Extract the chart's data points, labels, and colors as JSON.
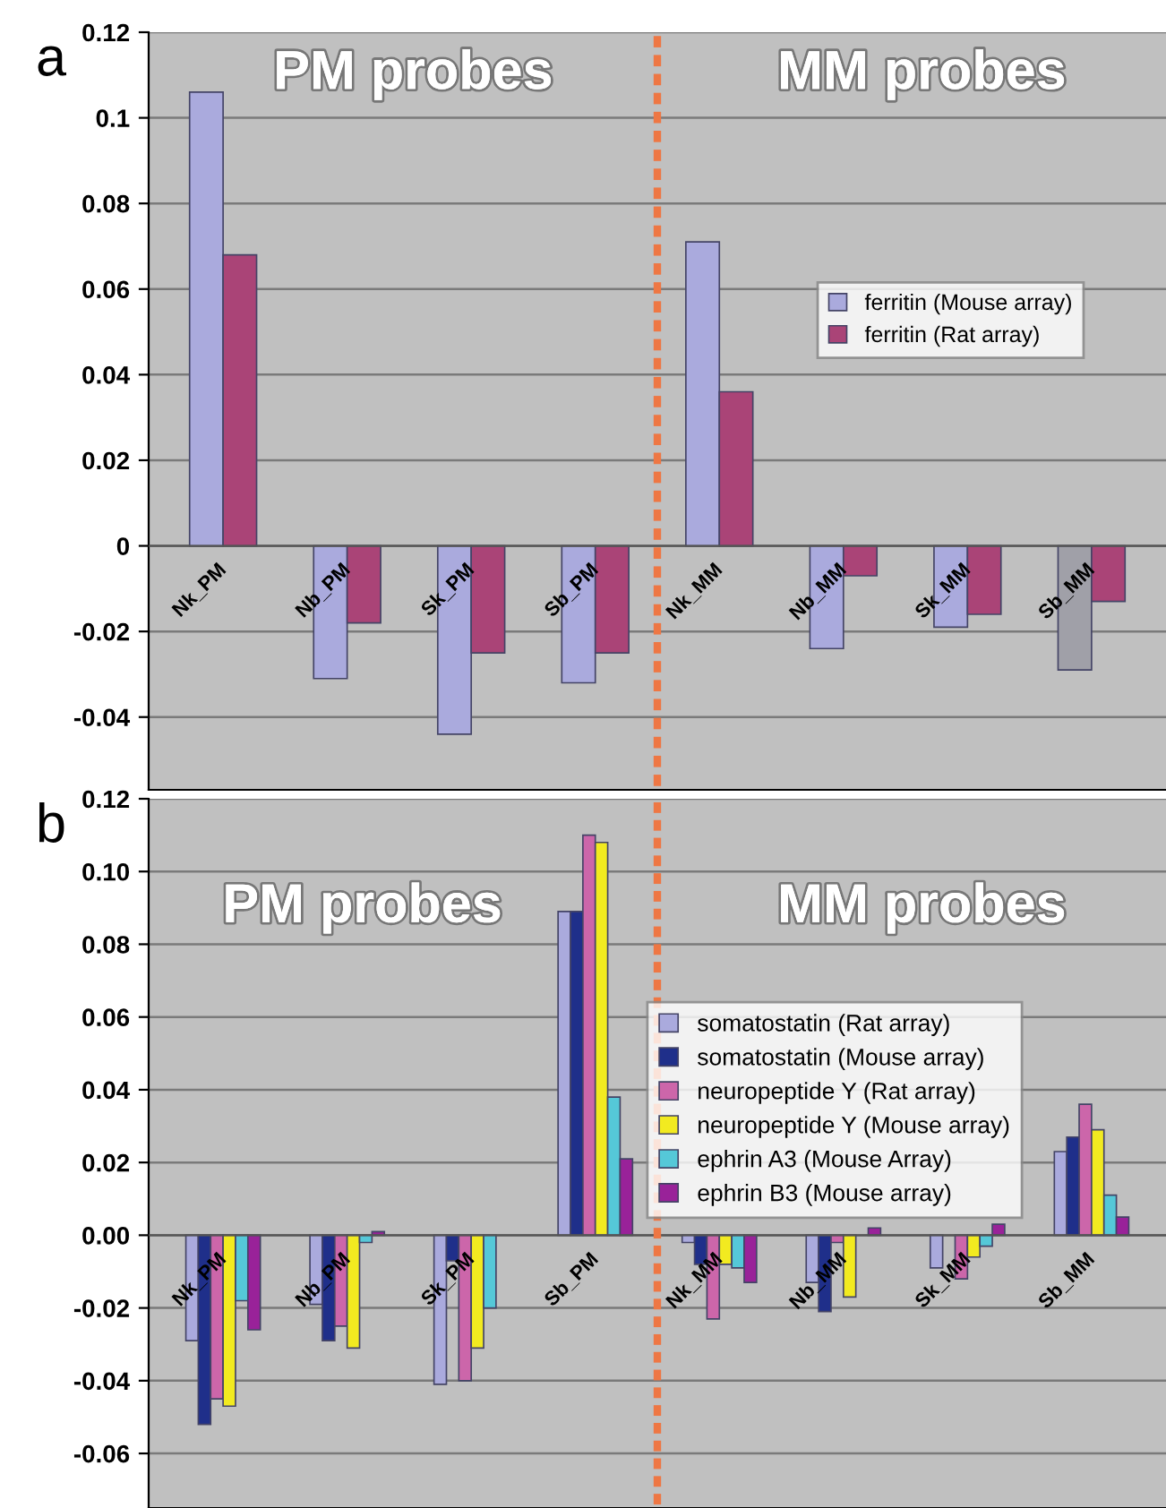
{
  "chart_data": [
    {
      "type": "bar",
      "annotations": [
        "a",
        "PM probes",
        "MM probes"
      ],
      "categories": [
        "Nk_PM",
        "Nb_PM",
        "Sk_PM",
        "Sb_PM",
        "Nk_MM",
        "Nb_MM",
        "Sk_MM",
        "Sb_MM"
      ],
      "series": [
        {
          "name": "ferritin (Mouse array)",
          "color": "#aaaadd",
          "colors": [
            "#aaaadd",
            "#aaaadd",
            "#aaaadd",
            "#aaaadd",
            "#aaaadd",
            "#aaaadd",
            "#aaaadd",
            "#a0a0a8"
          ],
          "values": [
            0.106,
            -0.031,
            -0.044,
            -0.032,
            0.071,
            -0.024,
            -0.019,
            -0.029
          ]
        },
        {
          "name": "ferritin (Rat array)",
          "color": "#aa4477",
          "values": [
            0.068,
            -0.018,
            -0.025,
            -0.025,
            0.036,
            -0.007,
            -0.016,
            -0.013
          ]
        }
      ],
      "ylim": [
        -0.057,
        0.12
      ],
      "yticks": [
        {
          "value": 0.12,
          "label": "0.12"
        },
        {
          "value": 0.1,
          "label": "0.1"
        },
        {
          "value": 0.08,
          "label": "0.08"
        },
        {
          "value": 0.06,
          "label": "0.06"
        },
        {
          "value": 0.04,
          "label": "0.04"
        },
        {
          "value": 0.02,
          "label": "0.02"
        },
        0,
        {
          "value": -0.02,
          "label": "-0.02"
        },
        {
          "value": -0.04,
          "label": "-0.04"
        }
      ],
      "grid": "y",
      "legend": "right"
    },
    {
      "type": "bar",
      "annotations": [
        "b",
        "PM probes",
        "MM probes"
      ],
      "categories": [
        "Nk_PM",
        "Nb_PM",
        "Sk_PM",
        "Sb_PM",
        "Nk_MM",
        "Nb_MM",
        "Sk_MM",
        "Sb_MM"
      ],
      "series": [
        {
          "name": "somatostatin (Rat array)",
          "color": "#aaaadd",
          "values": [
            -0.029,
            -0.019,
            -0.041,
            0.089,
            -0.002,
            -0.013,
            -0.009,
            0.023
          ]
        },
        {
          "name": "somatostatin (Mouse array)",
          "color": "#1f2f8a",
          "values": [
            -0.052,
            -0.029,
            -0.007,
            0.089,
            -0.008,
            -0.021,
            null,
            0.027
          ]
        },
        {
          "name": "neuropeptide Y (Rat array)",
          "color": "#cc66aa",
          "values": [
            -0.045,
            -0.025,
            -0.04,
            0.11,
            -0.023,
            -0.002,
            -0.012,
            0.036
          ]
        },
        {
          "name": "neuropeptide Y (Mouse array)",
          "color": "#f2ea20",
          "values": [
            -0.047,
            -0.031,
            -0.031,
            0.108,
            -0.008,
            -0.017,
            -0.006,
            0.029
          ]
        },
        {
          "name": "ephrin A3 (Mouse Array)",
          "color": "#55c8d8",
          "values": [
            -0.018,
            -0.002,
            -0.02,
            0.038,
            -0.009,
            null,
            -0.003,
            0.011
          ]
        },
        {
          "name": "ephrin B3 (Mouse array)",
          "color": "#992299",
          "values": [
            -0.026,
            0.001,
            null,
            0.021,
            -0.013,
            0.002,
            0.003,
            0.005
          ]
        }
      ],
      "ylim": [
        -0.075,
        0.12
      ],
      "yticks": [
        {
          "value": 0.12,
          "label": "0.12"
        },
        {
          "value": 0.1,
          "label": "0.10"
        },
        {
          "value": 0.08,
          "label": "0.08"
        },
        {
          "value": 0.06,
          "label": "0.06"
        },
        {
          "value": 0.04,
          "label": "0.04"
        },
        {
          "value": 0.02,
          "label": "0.02"
        },
        {
          "value": 0,
          "label": "0.00"
        },
        {
          "value": -0.02,
          "label": "-0.02"
        },
        {
          "value": -0.04,
          "label": "-0.04"
        },
        {
          "value": -0.06,
          "label": "-0.06"
        }
      ],
      "grid": "y",
      "legend": "top right"
    }
  ]
}
